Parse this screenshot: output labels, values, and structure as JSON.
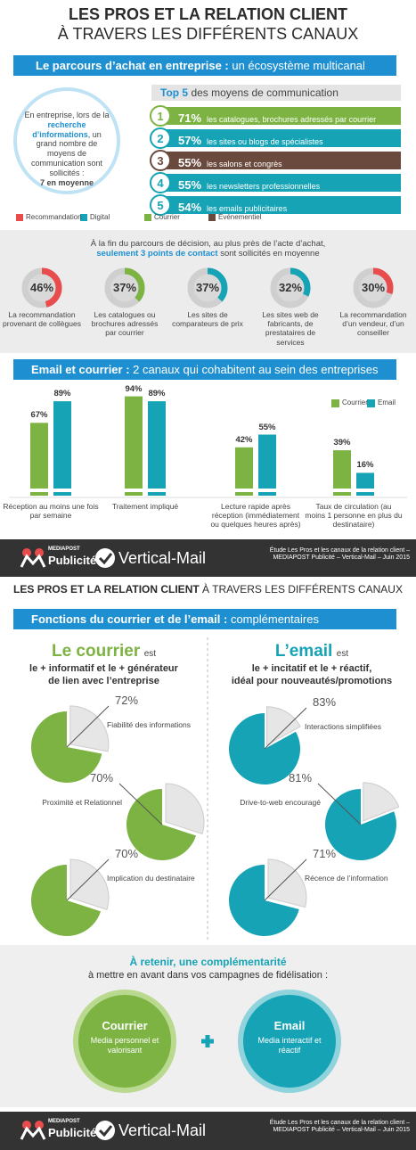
{
  "header": {
    "title_line1": "LES PROS ET LA RELATION CLIENT",
    "title_line2": "À TRAVERS LES DIFFÉRENTS CANAUX"
  },
  "parcours": {
    "banner_bold": "Le parcours d’achat en entreprise :",
    "banner_rest": "un écosystème multicanal",
    "circle": {
      "part1": "En entreprise, lors de la",
      "highlight": "recherche d’informations",
      "part2": ", un grand nombre de moyens de communication sont sollicités :",
      "bold": "7 en moyenne"
    },
    "top5_bold": "Top 5",
    "top5_rest": "des moyens de communication",
    "top5": [
      {
        "rank": "1",
        "value": "71%",
        "label": "les catalogues, brochures adressés par courrier",
        "color": "#7cb342"
      },
      {
        "rank": "2",
        "value": "57%",
        "label": "les sites ou blogs de spécialistes",
        "color": "#16a3b5"
      },
      {
        "rank": "3",
        "value": "55%",
        "label": "les salons et congrès",
        "color": "#6b4a3e"
      },
      {
        "rank": "4",
        "value": "55%",
        "label": "les newsletters professionnelles",
        "color": "#16a3b5"
      },
      {
        "rank": "5",
        "value": "54%",
        "label": "les emails publicitaires",
        "color": "#16a3b5"
      }
    ],
    "legend": [
      {
        "name": "Recommandation",
        "color": "#e84c4c"
      },
      {
        "name": "Digital",
        "color": "#16a3b5"
      },
      {
        "name": "Courrier",
        "color": "#7cb342"
      },
      {
        "name": "Événementiel",
        "color": "#6b4a3e"
      }
    ]
  },
  "points": {
    "intro": "À la fin du parcours de décision, au plus près de l’acte d’achat,",
    "highlight": "seulement 3 points de contact",
    "rest": "sont sollicités en moyenne",
    "rings": [
      {
        "value": 46,
        "label": "46%",
        "text": "La recommandation provenant de collègues",
        "color": "#e84c4c"
      },
      {
        "value": 37,
        "label": "37%",
        "text": "Les catalogues ou brochures adressés par courrier",
        "color": "#7cb342"
      },
      {
        "value": 37,
        "label": "37%",
        "text": "Les sites de comparateurs de prix",
        "color": "#16a3b5"
      },
      {
        "value": 32,
        "label": "32%",
        "text": "Les sites web de fabricants, de prestataires de services",
        "color": "#16a3b5"
      },
      {
        "value": 30,
        "label": "30%",
        "text": "La recommandation d’un vendeur, d’un conseiller",
        "color": "#e84c4c"
      }
    ]
  },
  "email_courrier": {
    "banner_bold": "Email et courrier :",
    "banner_rest": "2 canaux qui cohabitent au sein des entreprises",
    "type": "bar",
    "categories": [
      "Réception au moins une fois par semaine",
      "Traitement impliqué",
      "Lecture rapide après réception (immédiatement ou quelques heures après)",
      "Taux de circulation (au moins 1 personne en plus du destinataire)"
    ],
    "series": [
      {
        "name": "Courrier",
        "color": "#7cb342",
        "values": [
          67,
          94,
          42,
          39
        ],
        "value_labels": [
          "67%",
          "94%",
          "42%",
          "39%"
        ]
      },
      {
        "name": "Email",
        "color": "#16a3b5",
        "values": [
          89,
          89,
          55,
          16
        ],
        "value_labels": [
          "89%",
          "89%",
          "55%",
          "16%"
        ]
      }
    ],
    "ylim": [
      0,
      100
    ]
  },
  "footer": {
    "brand1_top": "MEDIAPOST",
    "brand1_bottom": "Publicité",
    "brand2": "Vertical-Mail",
    "credit": "Étude Les Pros et les canaux de la relation client – MEDIAPOST Publicité – Vertical-Mail – Juin 2015"
  },
  "header2": {
    "bold": "LES PROS ET LA RELATION CLIENT",
    "rest": "À TRAVERS LES DIFFÉRENTS CANAUX"
  },
  "fonctions": {
    "banner_bold": "Fonctions du courrier et de l’email :",
    "banner_rest": "complémentaires",
    "courrier": {
      "title": "Le courrier",
      "suffix": "est",
      "line1": "le + informatif et le + générateur",
      "line2": "de lien avec l’entreprise",
      "color": "#7cb342",
      "pies": [
        {
          "value": 72,
          "label": "72%",
          "text": "Fiabilité des informations"
        },
        {
          "value": 70,
          "label": "70%",
          "text": "Proximité et Relationnel"
        },
        {
          "value": 70,
          "label": "70%",
          "text": "Implication du destinataire"
        }
      ]
    },
    "email": {
      "title": "L’email",
      "suffix": "est",
      "line1": "le + incitatif et le + réactif,",
      "line2": "idéal pour nouveautés/promotions",
      "color": "#16a3b5",
      "pies": [
        {
          "value": 83,
          "label": "83%",
          "text": "Interactions simplifiées"
        },
        {
          "value": 81,
          "label": "81%",
          "text": "Drive-to-web encouragé"
        },
        {
          "value": 71,
          "label": "71%",
          "text": "Récence de l’information"
        }
      ]
    }
  },
  "retenir": {
    "title": "À retenir, une complémentarité",
    "subtitle": "à mettre en avant dans vos campagnes de fidélisation :",
    "courrier": {
      "title": "Courrier",
      "text": "Media personnel et valorisant"
    },
    "email": {
      "title": "Email",
      "text": "Media interactif et réactif"
    }
  }
}
